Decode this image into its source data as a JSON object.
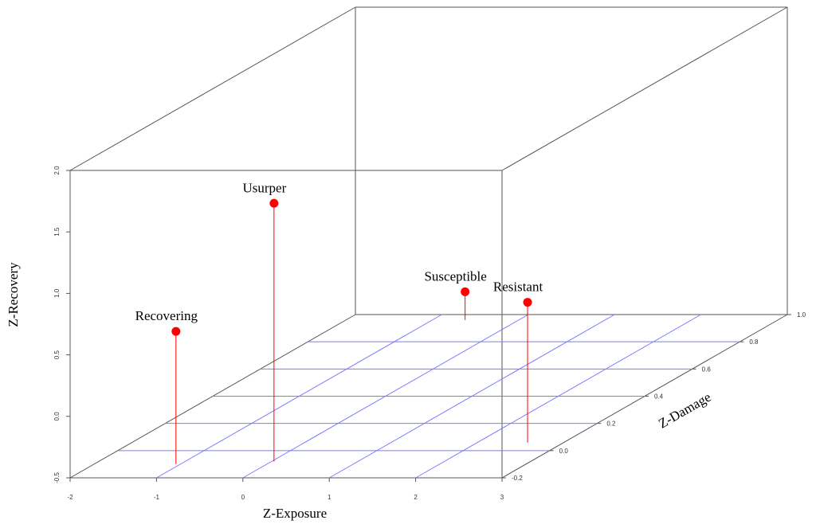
{
  "chart_data": {
    "type": "scatter3d",
    "x_label": "Z-Exposure",
    "y_label": "Z-Damage",
    "z_label": "Z-Recovery",
    "xlim": [
      -2,
      3
    ],
    "xticks": [
      -2,
      -1,
      0,
      1,
      2,
      3
    ],
    "ylim": [
      -0.2,
      1.0
    ],
    "yticks": [
      -0.2,
      {
        "value": 0,
        "label": "0.0"
      },
      0.2,
      0.4,
      0.6,
      0.8,
      {
        "value": 1.0,
        "label": "1.0"
      }
    ],
    "zlim": [
      -0.5,
      2.0
    ],
    "zticks": [
      -0.5,
      {
        "value": 0,
        "label": "0.0"
      },
      0.5,
      {
        "value": 1.0,
        "label": "1.0"
      },
      1.5,
      {
        "value": 2.0,
        "label": "2.0"
      }
    ],
    "grid": true,
    "grid_color": "#7b7bff",
    "color": "#ff0000",
    "points": [
      {
        "label": "Recovering",
        "x": -1.05,
        "y": -0.1,
        "z": 0.58
      },
      {
        "label": "Usurper",
        "x": 0.03,
        "y": -0.08,
        "z": 1.6
      },
      {
        "label": "Susceptible",
        "x": -0.62,
        "y": 0.96,
        "z": -0.27
      },
      {
        "label": "Resistant",
        "x": 2.58,
        "y": 0.06,
        "z": 0.64
      }
    ]
  }
}
